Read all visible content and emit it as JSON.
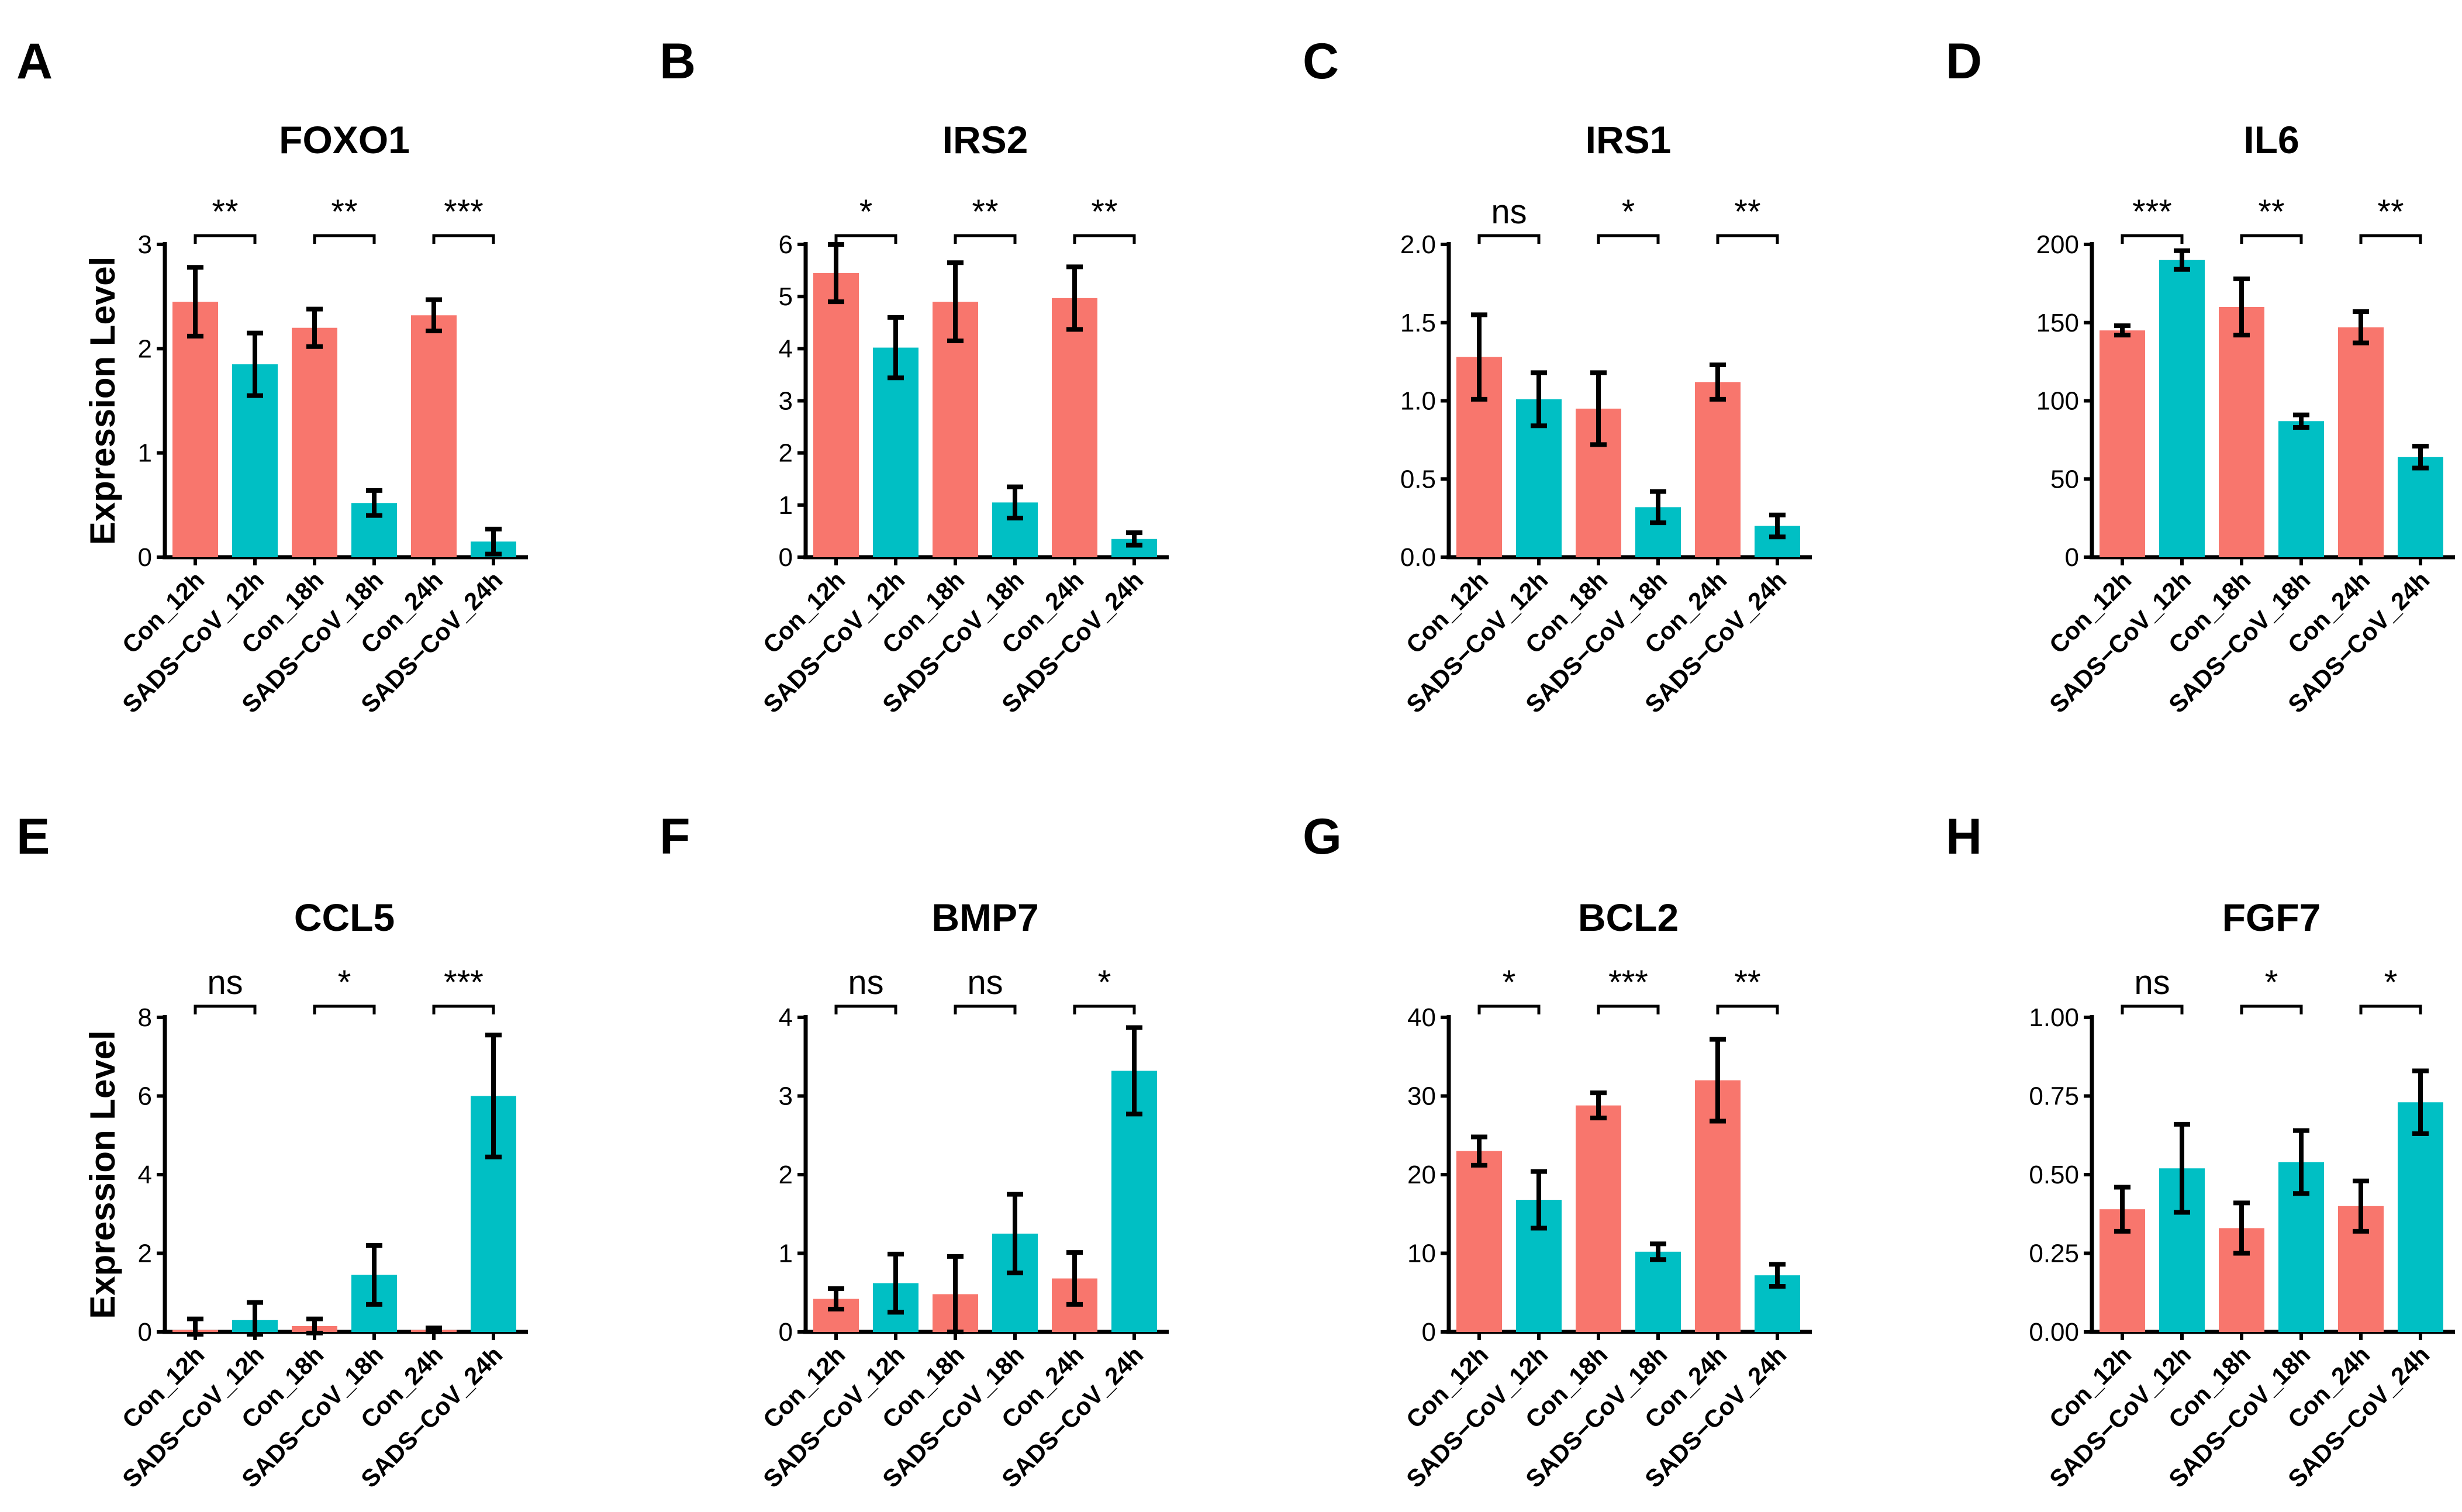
{
  "figure": {
    "colors": {
      "Con": "#F8766D",
      "SADS-CoV": "#00BFC4"
    }
  },
  "chart_data": [
    {
      "panel": "A",
      "type": "bar",
      "title": "FOXO1",
      "ylabel": "Expression Level",
      "ylim": [
        0,
        3
      ],
      "yticks": [
        "0",
        "1",
        "2",
        "3"
      ],
      "categories": [
        "Con_12h",
        "SADS−CoV_12h",
        "Con_18h",
        "SADS−CoV_18h",
        "Con_24h",
        "SADS−CoV_24h"
      ],
      "groups": [
        "Con",
        "SADS-CoV",
        "Con",
        "SADS-CoV",
        "Con",
        "SADS-CoV"
      ],
      "values": [
        2.45,
        1.85,
        2.2,
        0.52,
        2.32,
        0.15
      ],
      "errors": [
        0.33,
        0.3,
        0.18,
        0.12,
        0.15,
        0.12
      ],
      "significance": [
        "**",
        "**",
        "***"
      ]
    },
    {
      "panel": "B",
      "type": "bar",
      "title": "IRS2",
      "ylabel": "",
      "ylim": [
        0,
        6
      ],
      "yticks": [
        "0",
        "1",
        "2",
        "3",
        "4",
        "5",
        "6"
      ],
      "categories": [
        "Con_12h",
        "SADS−CoV_12h",
        "Con_18h",
        "SADS−CoV_18h",
        "Con_24h",
        "SADS−CoV_24h"
      ],
      "groups": [
        "Con",
        "SADS-CoV",
        "Con",
        "SADS-CoV",
        "Con",
        "SADS-CoV"
      ],
      "values": [
        5.45,
        4.02,
        4.9,
        1.05,
        4.97,
        0.35
      ],
      "errors": [
        0.55,
        0.58,
        0.75,
        0.3,
        0.6,
        0.12
      ],
      "significance": [
        "*",
        "**",
        "**"
      ]
    },
    {
      "panel": "C",
      "type": "bar",
      "title": "IRS1",
      "ylabel": "",
      "ylim": [
        0,
        2
      ],
      "yticks": [
        "0.0",
        "0.5",
        "1.0",
        "1.5",
        "2.0"
      ],
      "categories": [
        "Con_12h",
        "SADS−CoV_12h",
        "Con_18h",
        "SADS−CoV_18h",
        "Con_24h",
        "SADS−CoV_24h"
      ],
      "groups": [
        "Con",
        "SADS-CoV",
        "Con",
        "SADS-CoV",
        "Con",
        "SADS-CoV"
      ],
      "values": [
        1.28,
        1.01,
        0.95,
        0.32,
        1.12,
        0.2
      ],
      "errors": [
        0.27,
        0.17,
        0.23,
        0.1,
        0.11,
        0.07
      ],
      "significance": [
        "ns",
        "*",
        "**"
      ]
    },
    {
      "panel": "D",
      "type": "bar",
      "title": "IL6",
      "ylabel": "",
      "ylim": [
        0,
        200
      ],
      "yticks": [
        "0",
        "50",
        "100",
        "150",
        "200"
      ],
      "categories": [
        "Con_12h",
        "SADS−CoV_12h",
        "Con_18h",
        "SADS−CoV_18h",
        "Con_24h",
        "SADS−CoV_24h"
      ],
      "groups": [
        "Con",
        "SADS-CoV",
        "Con",
        "SADS-CoV",
        "Con",
        "SADS-CoV"
      ],
      "values": [
        145,
        190,
        160,
        87,
        147,
        64
      ],
      "errors": [
        3,
        6,
        18,
        4,
        10,
        7
      ],
      "significance": [
        "***",
        "**",
        "**"
      ]
    },
    {
      "panel": "E",
      "type": "bar",
      "title": "CCL5",
      "ylabel": "Expression Level",
      "ylim": [
        0,
        8
      ],
      "yticks": [
        "0",
        "2",
        "4",
        "6",
        "8"
      ],
      "categories": [
        "Con_12h",
        "SADS−CoV_12h",
        "Con_18h",
        "SADS−CoV_18h",
        "Con_24h",
        "SADS−CoV_24h"
      ],
      "groups": [
        "Con",
        "SADS-CoV",
        "Con",
        "SADS-CoV",
        "Con",
        "SADS-CoV"
      ],
      "values": [
        0.05,
        0.3,
        0.15,
        1.45,
        0.05,
        6.0
      ],
      "errors": [
        0.28,
        0.45,
        0.18,
        0.75,
        0.05,
        1.55
      ],
      "significance": [
        "ns",
        "*",
        "***"
      ]
    },
    {
      "panel": "F",
      "type": "bar",
      "title": "BMP7",
      "ylabel": "",
      "ylim": [
        0,
        4
      ],
      "yticks": [
        "0",
        "1",
        "2",
        "3",
        "4"
      ],
      "categories": [
        "Con_12h",
        "SADS−CoV_12h",
        "Con_18h",
        "SADS−CoV_18h",
        "Con_24h",
        "SADS−CoV_24h"
      ],
      "groups": [
        "Con",
        "SADS-CoV",
        "Con",
        "SADS-CoV",
        "Con",
        "SADS-CoV"
      ],
      "values": [
        0.42,
        0.62,
        0.48,
        1.25,
        0.68,
        3.32
      ],
      "errors": [
        0.13,
        0.37,
        0.48,
        0.5,
        0.33,
        0.55
      ],
      "significance": [
        "ns",
        "ns",
        "*"
      ]
    },
    {
      "panel": "G",
      "type": "bar",
      "title": "BCL2",
      "ylabel": "",
      "ylim": [
        0,
        40
      ],
      "yticks": [
        "0",
        "10",
        "20",
        "30",
        "40"
      ],
      "categories": [
        "Con_12h",
        "SADS−CoV_12h",
        "Con_18h",
        "SADS−CoV_18h",
        "Con_24h",
        "SADS−CoV_24h"
      ],
      "groups": [
        "Con",
        "SADS-CoV",
        "Con",
        "SADS-CoV",
        "Con",
        "SADS-CoV"
      ],
      "values": [
        23,
        16.8,
        28.8,
        10.2,
        32,
        7.2
      ],
      "errors": [
        1.8,
        3.6,
        1.6,
        1.0,
        5.2,
        1.4
      ],
      "significance": [
        "*",
        "***",
        "**"
      ]
    },
    {
      "panel": "H",
      "type": "bar",
      "title": "FGF7",
      "ylabel": "",
      "ylim": [
        0,
        1
      ],
      "yticks": [
        "0.00",
        "0.25",
        "0.50",
        "0.75",
        "1.00"
      ],
      "categories": [
        "Con_12h",
        "SADS−CoV_12h",
        "Con_18h",
        "SADS−CoV_18h",
        "Con_24h",
        "SADS−CoV_24h"
      ],
      "groups": [
        "Con",
        "SADS-CoV",
        "Con",
        "SADS-CoV",
        "Con",
        "SADS-CoV"
      ],
      "values": [
        0.39,
        0.52,
        0.33,
        0.54,
        0.4,
        0.73
      ],
      "errors": [
        0.07,
        0.14,
        0.08,
        0.1,
        0.08,
        0.1
      ],
      "significance": [
        "ns",
        "*",
        "*"
      ]
    }
  ]
}
